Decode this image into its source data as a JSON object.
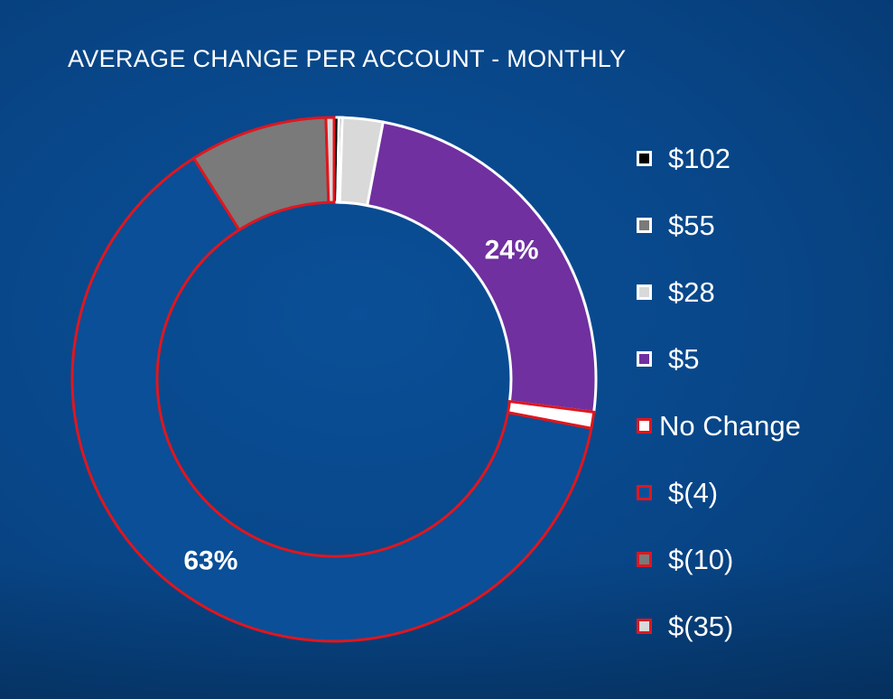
{
  "title": "AVERAGE CHANGE PER ACCOUNT - MONTHLY",
  "chart_data": {
    "type": "pie",
    "title": "AVERAGE CHANGE PER ACCOUNT - MONTHLY",
    "legend_position": "right",
    "start_angle_deg": 0,
    "series": [
      {
        "name": "$102",
        "value": 0.3,
        "fill": "#000000",
        "stroke": "#ffffff"
      },
      {
        "name": "$55",
        "value": 0.2,
        "fill": "#7a7a7a",
        "stroke": "#ffffff"
      },
      {
        "name": "$28",
        "value": 2.5,
        "fill": "#d9d9d9",
        "stroke": "#ffffff"
      },
      {
        "name": "$5",
        "value": 24,
        "fill": "#7030a0",
        "stroke": "#ffffff",
        "label": "24%"
      },
      {
        "name": "No Change",
        "value": 1,
        "fill": "#ffffff",
        "stroke": "#e0161e"
      },
      {
        "name": "$(4)",
        "value": 63,
        "fill": "#0a4f97",
        "stroke": "#e0161e",
        "label": "63%"
      },
      {
        "name": "$(10)",
        "value": 8.5,
        "fill": "#7a7a7a",
        "stroke": "#e0161e"
      },
      {
        "name": "$(35)",
        "value": 0.5,
        "fill": "#d9d9d9",
        "stroke": "#e0161e"
      }
    ]
  }
}
